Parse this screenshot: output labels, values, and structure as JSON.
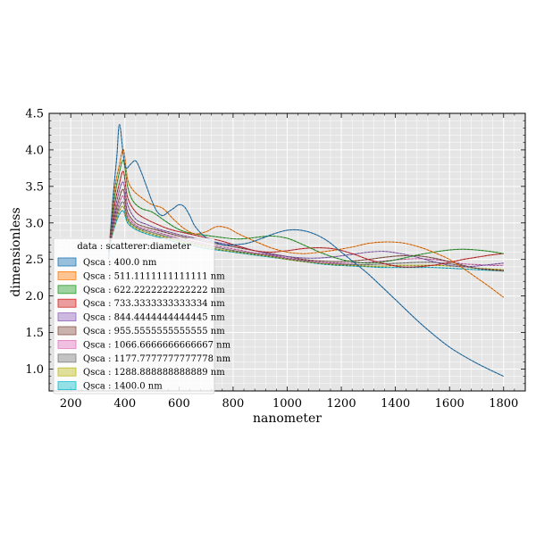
{
  "chart_data": {
    "type": "line",
    "title": "",
    "xlabel": "nanometer",
    "ylabel": "dimensionless",
    "xlim": [
      120,
      1880
    ],
    "ylim": [
      0.7,
      4.5
    ],
    "xticks": [
      200,
      400,
      600,
      800,
      1000,
      1200,
      1400,
      1600,
      1800
    ],
    "xtick_labels": [
      "200",
      "400",
      "600",
      "800",
      "1000",
      "1200",
      "1400",
      "1600",
      "1800"
    ],
    "yticks": [
      1.0,
      1.5,
      2.0,
      2.5,
      3.0,
      3.5,
      4.0,
      4.5
    ],
    "ytick_labels": [
      "1.0",
      "1.5",
      "2.0",
      "2.5",
      "3.0",
      "3.5",
      "4.0",
      "4.5"
    ],
    "grid": true,
    "legend": {
      "title": "data : scatterer:diameter",
      "placement": "lower-left"
    },
    "colors": {
      "background": "#e5e5e5",
      "grid": "#ffffff"
    },
    "series": [
      {
        "name": "Qsca : 400.0 nm",
        "color": "#1f77b4",
        "x": [
          340,
          355,
          370,
          380,
          395,
          405,
          420,
          440,
          460,
          480,
          500,
          520,
          540,
          560,
          580,
          600,
          620,
          640,
          660,
          700,
          760,
          800,
          850,
          900,
          950,
          1000,
          1050,
          1100,
          1150,
          1200,
          1250,
          1300,
          1400,
          1500,
          1600,
          1700,
          1800
        ],
        "y": [
          2.5,
          3.3,
          3.9,
          4.35,
          3.9,
          3.75,
          3.8,
          3.85,
          3.7,
          3.5,
          3.3,
          3.15,
          3.1,
          3.15,
          3.2,
          3.25,
          3.22,
          3.1,
          2.95,
          2.8,
          2.7,
          2.7,
          2.72,
          2.78,
          2.85,
          2.9,
          2.9,
          2.85,
          2.75,
          2.6,
          2.45,
          2.3,
          1.95,
          1.6,
          1.3,
          1.08,
          0.9
        ]
      },
      {
        "name": "Qsca : 511.1111111111111 nm",
        "color": "#ff7f0e",
        "x": [
          340,
          360,
          380,
          395,
          410,
          430,
          460,
          500,
          540,
          580,
          620,
          660,
          700,
          740,
          780,
          820,
          880,
          940,
          1000,
          1060,
          1120,
          1180,
          1240,
          1300,
          1360,
          1420,
          1480,
          1540,
          1600,
          1650,
          1700,
          1750,
          1800
        ],
        "y": [
          2.6,
          3.4,
          3.8,
          4.0,
          3.6,
          3.45,
          3.35,
          3.25,
          3.2,
          3.05,
          2.92,
          2.85,
          2.88,
          2.95,
          2.93,
          2.85,
          2.75,
          2.66,
          2.6,
          2.58,
          2.6,
          2.63,
          2.67,
          2.72,
          2.74,
          2.73,
          2.68,
          2.6,
          2.5,
          2.38,
          2.25,
          2.12,
          1.98
        ]
      },
      {
        "name": "Qsca : 622.2222222222222 nm",
        "color": "#2ca02c",
        "x": [
          340,
          360,
          380,
          395,
          410,
          430,
          460,
          500,
          540,
          580,
          620,
          660,
          700,
          760,
          820,
          880,
          940,
          1000,
          1060,
          1120,
          1180,
          1240,
          1300,
          1360,
          1420,
          1480,
          1540,
          1600,
          1650,
          1700,
          1750,
          1800
        ],
        "y": [
          2.6,
          3.3,
          3.7,
          3.85,
          3.5,
          3.3,
          3.2,
          3.15,
          3.05,
          2.95,
          2.88,
          2.85,
          2.83,
          2.8,
          2.78,
          2.8,
          2.82,
          2.79,
          2.7,
          2.6,
          2.52,
          2.47,
          2.45,
          2.47,
          2.51,
          2.56,
          2.6,
          2.63,
          2.64,
          2.63,
          2.61,
          2.58
        ]
      },
      {
        "name": "Qsca : 733.3333333333334 nm",
        "color": "#d62728",
        "x": [
          340,
          360,
          380,
          395,
          410,
          440,
          480,
          520,
          560,
          600,
          650,
          700,
          760,
          820,
          880,
          940,
          1000,
          1060,
          1120,
          1180,
          1240,
          1300,
          1360,
          1420,
          1480,
          1540,
          1600,
          1650,
          1700,
          1750,
          1800
        ],
        "y": [
          2.6,
          3.2,
          3.55,
          3.7,
          3.35,
          3.15,
          3.05,
          2.98,
          2.92,
          2.88,
          2.84,
          2.8,
          2.75,
          2.68,
          2.62,
          2.6,
          2.62,
          2.65,
          2.66,
          2.64,
          2.58,
          2.5,
          2.44,
          2.4,
          2.4,
          2.42,
          2.46,
          2.5,
          2.53,
          2.56,
          2.58
        ]
      },
      {
        "name": "Qsca : 844.4444444444445 nm",
        "color": "#9467bd",
        "x": [
          340,
          360,
          380,
          395,
          410,
          440,
          480,
          520,
          560,
          600,
          650,
          700,
          760,
          820,
          880,
          940,
          1000,
          1060,
          1120,
          1180,
          1240,
          1300,
          1360,
          1420,
          1480,
          1540,
          1600,
          1650,
          1700,
          1750,
          1800
        ],
        "y": [
          2.6,
          3.1,
          3.45,
          3.55,
          3.25,
          3.05,
          2.98,
          2.92,
          2.88,
          2.84,
          2.8,
          2.76,
          2.72,
          2.68,
          2.62,
          2.57,
          2.54,
          2.52,
          2.52,
          2.54,
          2.57,
          2.6,
          2.61,
          2.58,
          2.53,
          2.47,
          2.42,
          2.4,
          2.41,
          2.43,
          2.45
        ]
      },
      {
        "name": "Qsca : 955.5555555555555 nm",
        "color": "#8c564b",
        "x": [
          340,
          360,
          380,
          395,
          410,
          440,
          480,
          520,
          560,
          600,
          650,
          700,
          760,
          820,
          880,
          940,
          1000,
          1060,
          1120,
          1180,
          1240,
          1300,
          1360,
          1420,
          1480,
          1540,
          1600,
          1650,
          1700,
          1750,
          1800
        ],
        "y": [
          2.6,
          3.05,
          3.35,
          3.45,
          3.15,
          3.0,
          2.94,
          2.9,
          2.86,
          2.82,
          2.78,
          2.74,
          2.7,
          2.66,
          2.62,
          2.58,
          2.54,
          2.5,
          2.48,
          2.47,
          2.48,
          2.5,
          2.53,
          2.55,
          2.55,
          2.52,
          2.47,
          2.42,
          2.38,
          2.36,
          2.35
        ]
      },
      {
        "name": "Qsca : 1066.6666666666667 nm",
        "color": "#e377c2",
        "x": [
          340,
          360,
          380,
          395,
          410,
          440,
          480,
          520,
          560,
          600,
          650,
          700,
          760,
          820,
          880,
          940,
          1000,
          1060,
          1120,
          1180,
          1240,
          1300,
          1360,
          1420,
          1480,
          1540,
          1600,
          1650,
          1700,
          1750,
          1800
        ],
        "y": [
          2.6,
          3.0,
          3.28,
          3.36,
          3.1,
          2.97,
          2.91,
          2.87,
          2.83,
          2.79,
          2.75,
          2.71,
          2.67,
          2.63,
          2.59,
          2.56,
          2.52,
          2.49,
          2.46,
          2.45,
          2.45,
          2.46,
          2.48,
          2.5,
          2.51,
          2.5,
          2.47,
          2.44,
          2.43,
          2.42,
          2.42
        ]
      },
      {
        "name": "Qsca : 1177.7777777777778 nm",
        "color": "#7f7f7f",
        "x": [
          340,
          360,
          380,
          395,
          410,
          440,
          480,
          520,
          560,
          600,
          650,
          700,
          760,
          820,
          880,
          940,
          1000,
          1060,
          1120,
          1180,
          1240,
          1300,
          1360,
          1420,
          1480,
          1540,
          1600,
          1650,
          1700,
          1750,
          1800
        ],
        "y": [
          2.6,
          2.98,
          3.22,
          3.28,
          3.06,
          2.95,
          2.89,
          2.85,
          2.81,
          2.77,
          2.73,
          2.69,
          2.65,
          2.61,
          2.58,
          2.55,
          2.51,
          2.48,
          2.46,
          2.44,
          2.43,
          2.43,
          2.44,
          2.45,
          2.46,
          2.46,
          2.44,
          2.41,
          2.38,
          2.36,
          2.34
        ]
      },
      {
        "name": "Qsca : 1288.888888888889 nm",
        "color": "#bcbd22",
        "x": [
          340,
          360,
          380,
          395,
          410,
          440,
          480,
          520,
          560,
          600,
          650,
          700,
          760,
          820,
          880,
          940,
          1000,
          1060,
          1120,
          1180,
          1240,
          1300,
          1360,
          1420,
          1480,
          1540,
          1600,
          1650,
          1700,
          1750,
          1800
        ],
        "y": [
          2.6,
          2.95,
          3.17,
          3.22,
          3.03,
          2.93,
          2.87,
          2.83,
          2.79,
          2.75,
          2.71,
          2.67,
          2.63,
          2.6,
          2.57,
          2.54,
          2.5,
          2.47,
          2.45,
          2.43,
          2.42,
          2.41,
          2.41,
          2.42,
          2.42,
          2.42,
          2.41,
          2.4,
          2.38,
          2.37,
          2.36
        ]
      },
      {
        "name": "Qsca : 1400.0 nm",
        "color": "#17becf",
        "x": [
          340,
          360,
          380,
          395,
          410,
          440,
          480,
          520,
          560,
          600,
          650,
          700,
          760,
          820,
          880,
          940,
          1000,
          1060,
          1120,
          1180,
          1240,
          1300,
          1360,
          1420,
          1480,
          1540,
          1600,
          1650,
          1700,
          1750,
          1800
        ],
        "y": [
          2.6,
          2.92,
          3.12,
          3.16,
          3.0,
          2.91,
          2.85,
          2.81,
          2.77,
          2.73,
          2.69,
          2.65,
          2.62,
          2.59,
          2.56,
          2.53,
          2.5,
          2.47,
          2.44,
          2.42,
          2.41,
          2.4,
          2.39,
          2.39,
          2.39,
          2.39,
          2.38,
          2.37,
          2.36,
          2.35,
          2.34
        ]
      }
    ]
  }
}
